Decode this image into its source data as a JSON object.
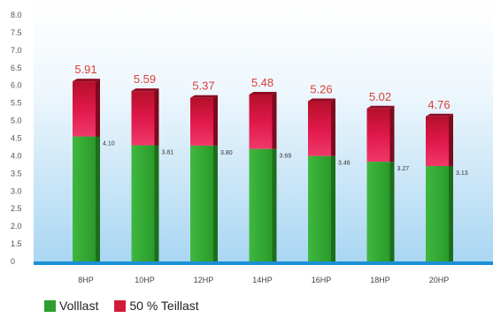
{
  "chart_data": {
    "type": "bar",
    "stacked": true,
    "categories": [
      "8HP",
      "10HP",
      "12HP",
      "14HP",
      "16HP",
      "18HP",
      "20HP"
    ],
    "series": [
      {
        "name": "Volllast",
        "values": [
          4.1,
          3.81,
          3.8,
          3.69,
          3.46,
          3.27,
          3.13
        ],
        "color": "#2e9e2e"
      },
      {
        "name": "50 % Teillast",
        "values": [
          1.81,
          1.78,
          1.57,
          1.79,
          1.8,
          1.75,
          1.63
        ],
        "color": "#d41a3a"
      }
    ],
    "totals": [
      "5.91",
      "5.59",
      "5.37",
      "5.48",
      "5.26",
      "5.02",
      "4.76"
    ],
    "full_load_labels": [
      "4.10",
      "3.81",
      "3.80",
      "3.69",
      "3.46",
      "3.27",
      "3.13"
    ],
    "y_ticks": [
      "8.0",
      "7.5",
      "7.0",
      "6.5",
      "6.0",
      "5.5",
      "5.0",
      "4.5",
      "4.0",
      "3.5",
      "3.0",
      "2.5",
      "2.0",
      "1.5",
      "0"
    ],
    "ylim": [
      0,
      8.0
    ],
    "title": "",
    "xlabel": "",
    "ylabel": "",
    "legend_position": "bottom-left",
    "colors": {
      "total_label": "#d9403a",
      "background_top": "#ffffff",
      "background_bottom": "#a9d6f2",
      "baseline": "#1b8fd6"
    }
  },
  "legend": {
    "items": [
      {
        "label": "Volllast",
        "color": "#2e9e2e"
      },
      {
        "label": "50 % Teillast",
        "color": "#d41a3a"
      }
    ]
  }
}
